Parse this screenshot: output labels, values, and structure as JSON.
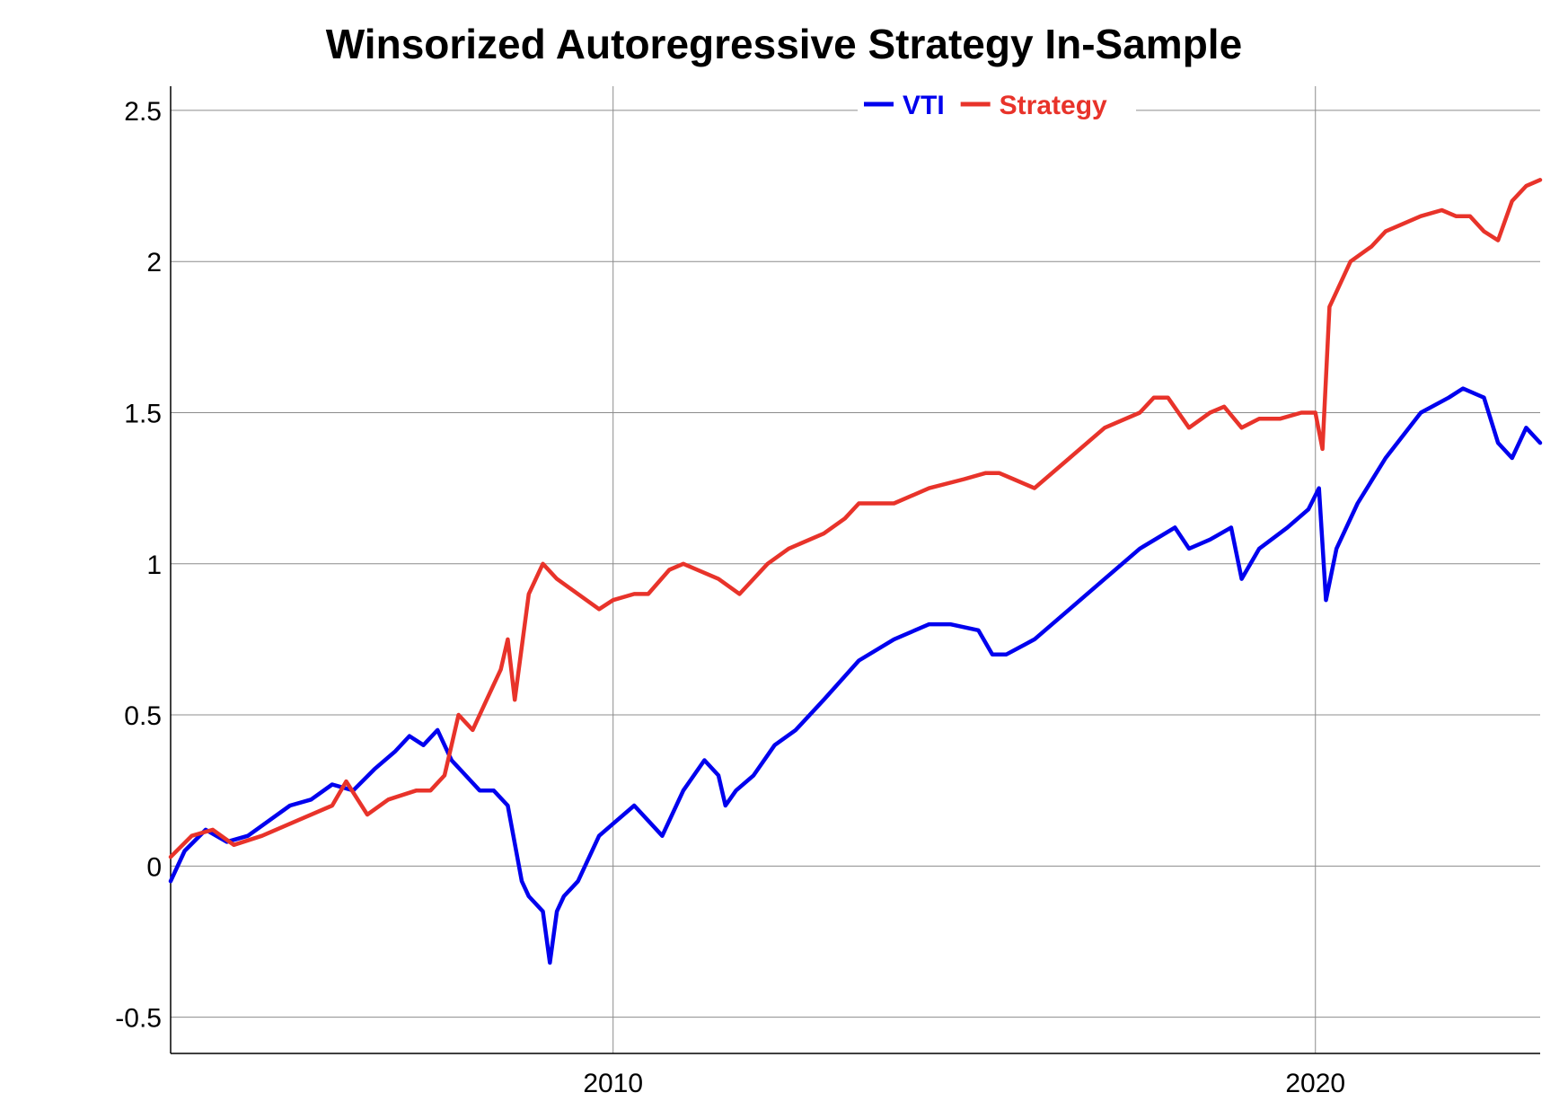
{
  "chart_data": {
    "type": "line",
    "title": "Winsorized Autoregressive Strategy In-Sample",
    "xlabel": "",
    "ylabel": "",
    "xlim": [
      2003.7,
      2023.2
    ],
    "ylim": [
      -0.62,
      2.58
    ],
    "y_ticks": [
      -0.5,
      0,
      0.5,
      1,
      1.5,
      2,
      2.5
    ],
    "y_tick_labels": [
      "-0.5",
      "0",
      "0.5",
      "1",
      "1.5",
      "2",
      "2.5"
    ],
    "x_ticks": [
      2010,
      2020
    ],
    "x_tick_labels": [
      "2010",
      "2020"
    ],
    "grid": true,
    "legend_position": "top-center",
    "series": [
      {
        "name": "VTI",
        "color": "#0000ee",
        "x": [
          2003.7,
          2003.9,
          2004.2,
          2004.5,
          2004.8,
          2005.1,
          2005.4,
          2005.7,
          2006.0,
          2006.3,
          2006.6,
          2006.9,
          2007.1,
          2007.3,
          2007.5,
          2007.7,
          2007.9,
          2008.1,
          2008.3,
          2008.5,
          2008.7,
          2008.8,
          2009.0,
          2009.1,
          2009.2,
          2009.3,
          2009.5,
          2009.8,
          2010.0,
          2010.3,
          2010.5,
          2010.7,
          2011.0,
          2011.3,
          2011.5,
          2011.6,
          2011.75,
          2012.0,
          2012.3,
          2012.6,
          2013.0,
          2013.5,
          2014.0,
          2014.5,
          2014.8,
          2015.2,
          2015.4,
          2015.6,
          2016.0,
          2016.5,
          2017.0,
          2017.5,
          2018.0,
          2018.2,
          2018.5,
          2018.8,
          2018.95,
          2019.2,
          2019.6,
          2019.9,
          2020.05,
          2020.15,
          2020.3,
          2020.6,
          2021.0,
          2021.5,
          2021.9,
          2022.1,
          2022.4,
          2022.6,
          2022.8,
          2023.0,
          2023.2
        ],
        "values": [
          -0.05,
          0.05,
          0.12,
          0.08,
          0.1,
          0.15,
          0.2,
          0.22,
          0.27,
          0.25,
          0.32,
          0.38,
          0.43,
          0.4,
          0.45,
          0.35,
          0.3,
          0.25,
          0.25,
          0.2,
          -0.05,
          -0.1,
          -0.15,
          -0.32,
          -0.15,
          -0.1,
          -0.05,
          0.1,
          0.14,
          0.2,
          0.15,
          0.1,
          0.25,
          0.35,
          0.3,
          0.2,
          0.25,
          0.3,
          0.4,
          0.45,
          0.55,
          0.68,
          0.75,
          0.8,
          0.8,
          0.78,
          0.7,
          0.7,
          0.75,
          0.85,
          0.95,
          1.05,
          1.12,
          1.05,
          1.08,
          1.12,
          0.95,
          1.05,
          1.12,
          1.18,
          1.25,
          0.88,
          1.05,
          1.2,
          1.35,
          1.5,
          1.55,
          1.58,
          1.55,
          1.4,
          1.35,
          1.45,
          1.4
        ]
      },
      {
        "name": "Strategy",
        "color": "#e8332a",
        "x": [
          2003.7,
          2004.0,
          2004.3,
          2004.6,
          2005.0,
          2005.5,
          2006.0,
          2006.2,
          2006.5,
          2006.8,
          2007.2,
          2007.4,
          2007.6,
          2007.7,
          2007.8,
          2008.0,
          2008.2,
          2008.3,
          2008.4,
          2008.5,
          2008.6,
          2008.8,
          2009.0,
          2009.2,
          2009.5,
          2009.8,
          2010.0,
          2010.3,
          2010.5,
          2010.8,
          2011.0,
          2011.5,
          2011.8,
          2012.0,
          2012.2,
          2012.5,
          2013.0,
          2013.3,
          2013.5,
          2014.0,
          2014.5,
          2015.0,
          2015.3,
          2015.5,
          2015.7,
          2016.0,
          2016.5,
          2017.0,
          2017.5,
          2017.7,
          2017.9,
          2018.2,
          2018.5,
          2018.7,
          2018.95,
          2019.2,
          2019.5,
          2019.8,
          2020.0,
          2020.1,
          2020.2,
          2020.3,
          2020.5,
          2020.8,
          2021.0,
          2021.5,
          2021.8,
          2022.0,
          2022.2,
          2022.4,
          2022.6,
          2022.8,
          2023.0,
          2023.2
        ],
        "values": [
          0.03,
          0.1,
          0.12,
          0.07,
          0.1,
          0.15,
          0.2,
          0.28,
          0.17,
          0.22,
          0.25,
          0.25,
          0.3,
          0.4,
          0.5,
          0.45,
          0.55,
          0.6,
          0.65,
          0.75,
          0.55,
          0.9,
          1.0,
          0.95,
          0.9,
          0.85,
          0.88,
          0.9,
          0.9,
          0.98,
          1.0,
          0.95,
          0.9,
          0.95,
          1.0,
          1.05,
          1.1,
          1.15,
          1.2,
          1.2,
          1.25,
          1.28,
          1.3,
          1.3,
          1.28,
          1.25,
          1.35,
          1.45,
          1.5,
          1.55,
          1.55,
          1.45,
          1.5,
          1.52,
          1.45,
          1.48,
          1.48,
          1.5,
          1.5,
          1.38,
          1.85,
          1.9,
          2.0,
          2.05,
          2.1,
          2.15,
          2.17,
          2.15,
          2.15,
          2.1,
          2.07,
          2.2,
          2.25,
          2.27
        ]
      }
    ]
  }
}
